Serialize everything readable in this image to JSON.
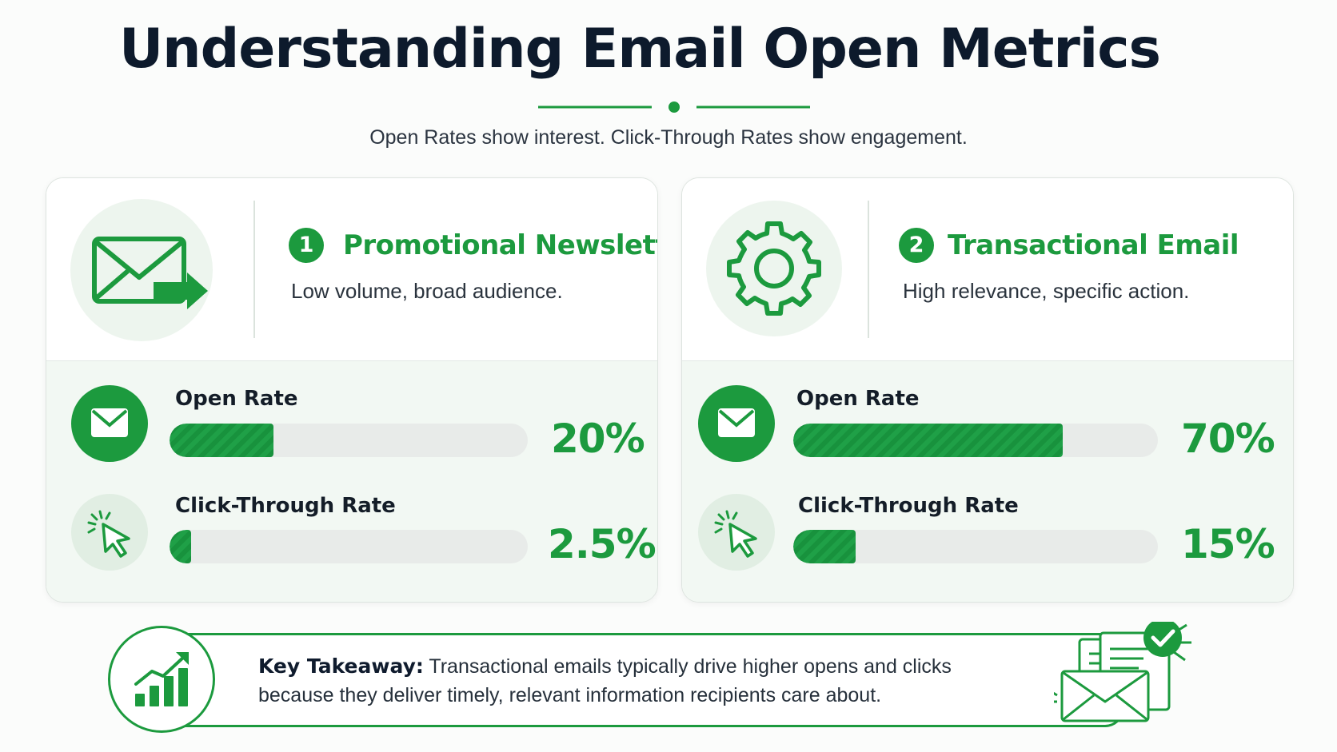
{
  "header": {
    "title": "Understanding Email Open Metrics",
    "subtitle": "Open Rates show interest. Click-Through Rates show engagement."
  },
  "colors": {
    "accent": "#1c9a3e",
    "soft": "#edf5ee",
    "title": "#0d1a2c"
  },
  "cards": [
    {
      "number": "1",
      "title": "Promotional Newsletter",
      "description": "Low volume, broad audience.",
      "icon": "envelope-send-icon",
      "metrics": [
        {
          "label": "Open Rate",
          "value": "20%",
          "fill": 0.29,
          "icon": "envelope-icon"
        },
        {
          "label": "Click-Through Rate",
          "value": "2.5%",
          "fill": 0.06,
          "icon": "cursor-click-icon"
        }
      ]
    },
    {
      "number": "2",
      "title": "Transactional Email",
      "description": "High relevance, specific action.",
      "icon": "gear-icon",
      "metrics": [
        {
          "label": "Open Rate",
          "value": "70%",
          "fill": 0.74,
          "icon": "envelope-icon"
        },
        {
          "label": "Click-Through Rate",
          "value": "15%",
          "fill": 0.17,
          "icon": "cursor-click-icon"
        }
      ]
    }
  ],
  "takeaway": {
    "label": "Key Takeaway:",
    "text": "Transactional emails typically drive higher opens and clicks because they deliver timely, relevant information recipients care about.",
    "icon": "growth-chart-icon",
    "art": "envelope-checkmark-icon"
  }
}
